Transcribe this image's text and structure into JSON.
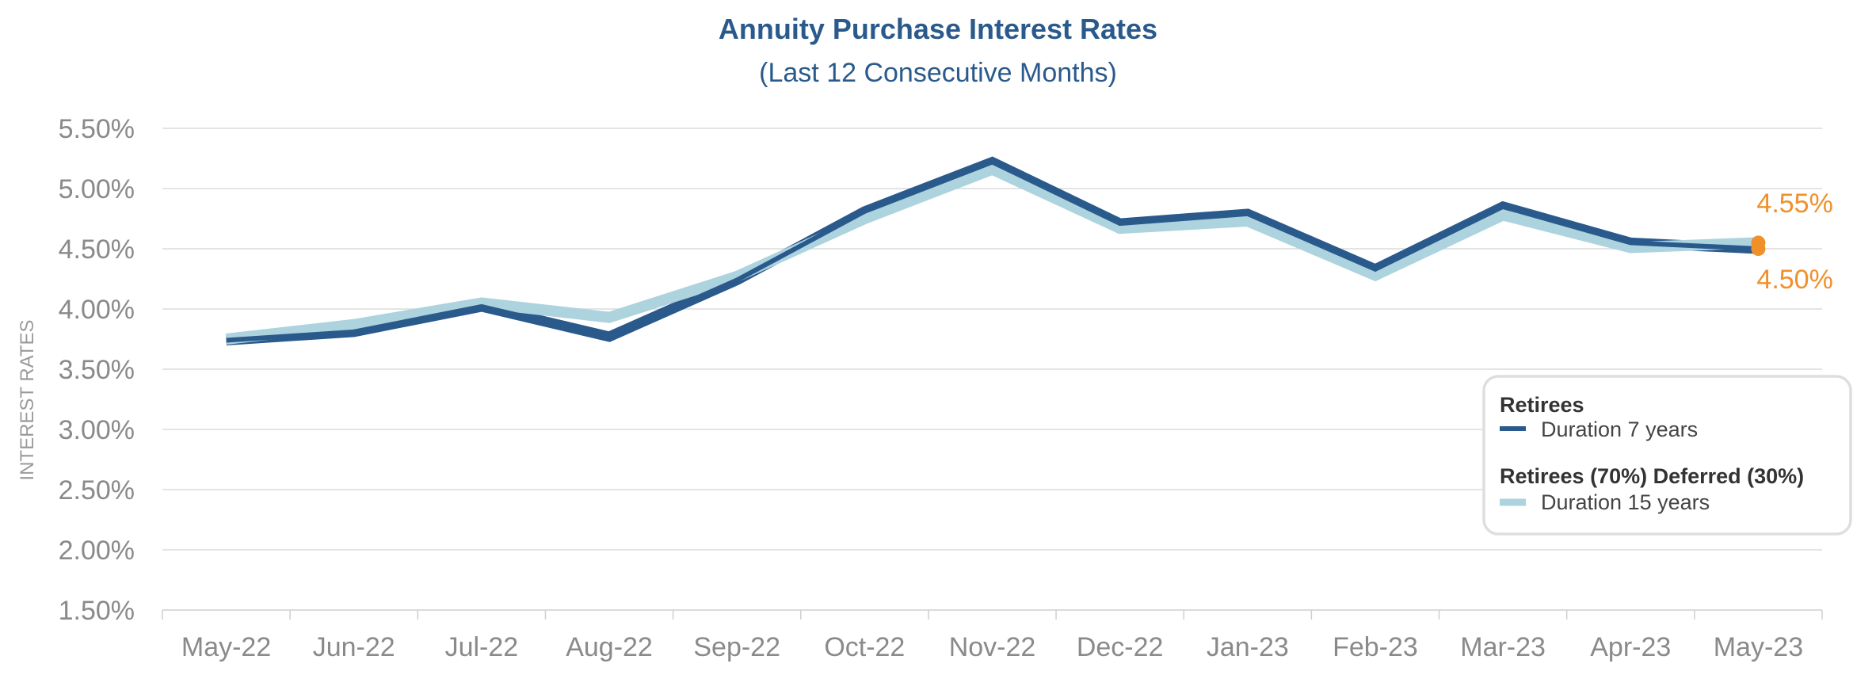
{
  "chart_data": {
    "type": "line",
    "title": "Annuity Purchase Interest Rates",
    "subtitle": "(Last 12 Consecutive Months)",
    "ylabel": "INTEREST RATES",
    "xlabel": "",
    "categories": [
      "May-22",
      "Jun-22",
      "Jul-22",
      "Aug-22",
      "Sep-22",
      "Oct-22",
      "Nov-22",
      "Dec-22",
      "Jan-23",
      "Feb-23",
      "Mar-23",
      "Apr-23",
      "May-23"
    ],
    "ylim": [
      1.5,
      5.5
    ],
    "yticks": [
      1.5,
      2.0,
      2.5,
      3.0,
      3.5,
      4.0,
      4.5,
      5.0,
      5.5
    ],
    "ytick_labels": [
      "1.50%",
      "2.00%",
      "2.50%",
      "3.00%",
      "3.50%",
      "4.00%",
      "4.50%",
      "5.00%",
      "5.50%"
    ],
    "grid": "horizontal",
    "legend_position": "bottom-right",
    "series": [
      {
        "name": "Duration 7 years",
        "group": "Retirees",
        "color": "#2a5a8c",
        "values": [
          3.74,
          3.81,
          4.02,
          3.77,
          4.24,
          4.81,
          5.22,
          4.71,
          4.79,
          4.33,
          4.85,
          4.55,
          4.5
        ]
      },
      {
        "name": "Duration 15 years",
        "group": "Retirees (70%) Deferred (30%)",
        "color": "#acd3de",
        "values": [
          3.75,
          3.87,
          4.05,
          3.93,
          4.27,
          4.75,
          5.16,
          4.67,
          4.73,
          4.28,
          4.78,
          4.51,
          4.55
        ]
      }
    ],
    "annotations": [
      {
        "text": "4.55%",
        "series": 1,
        "index": 12,
        "value": 4.55,
        "color": "#f0902a"
      },
      {
        "text": "4.50%",
        "series": 0,
        "index": 12,
        "value": 4.5,
        "color": "#f0902a"
      }
    ]
  }
}
